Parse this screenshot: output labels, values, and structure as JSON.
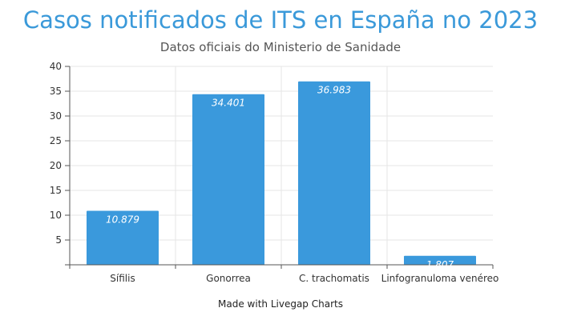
{
  "chart_data": {
    "type": "bar",
    "title": "Casos notificados de ITS en España no 2023",
    "subtitle": "Datos oficiais do Ministerio de Sanidade",
    "footer": "Made with Livegap Charts",
    "categories": [
      "Sífilis",
      "Gonorrea",
      "C. trachomatis",
      "Linfogranuloma venéreo"
    ],
    "values": [
      10.879,
      34.401,
      36.983,
      1.807
    ],
    "data_labels": [
      "10.879",
      "34.401",
      "36.983",
      "1.807"
    ],
    "yticks": [
      5,
      10,
      15,
      20,
      25,
      30,
      35,
      40
    ],
    "ylim": [
      0,
      40
    ],
    "xlabel": "",
    "ylabel": "",
    "grid": true,
    "bar_color": "#3a99dc",
    "grid_color": "#e6e6e6",
    "axis_color": "#555555"
  }
}
